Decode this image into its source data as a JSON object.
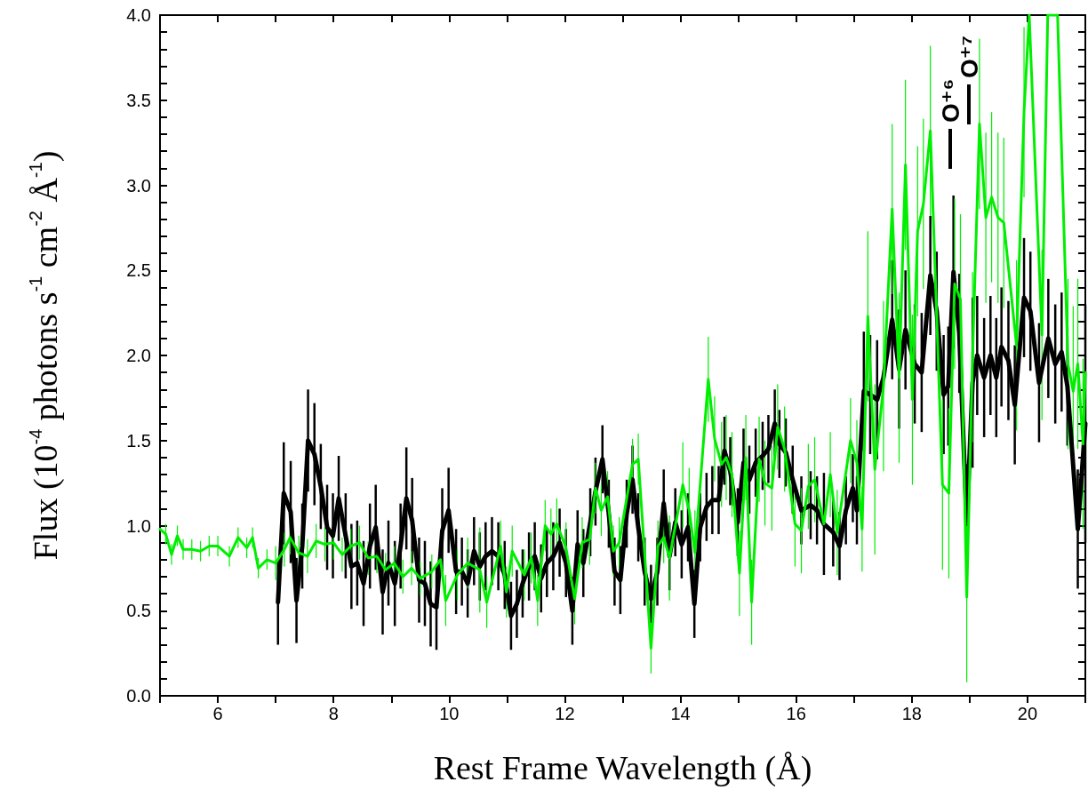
{
  "chart_data": {
    "type": "line",
    "xlabel": "Rest Frame Wavelength (Å)",
    "ylabel": "Flux (10$^{-4}$ photons s$^{-1}$ cm$^{-2}$ Å$^{-1}$)",
    "xlim": [
      5,
      21
    ],
    "xticks": [
      {
        "value": 5,
        "label": null
      },
      6,
      {
        "value": 7,
        "label": null
      },
      8,
      {
        "value": 9,
        "label": null
      },
      10,
      {
        "value": 11,
        "label": null
      },
      12,
      {
        "value": 13,
        "label": null
      },
      14,
      {
        "value": 15,
        "label": null
      },
      16,
      {
        "value": 17,
        "label": null
      },
      18,
      {
        "value": 19,
        "label": null
      },
      20,
      {
        "value": 21,
        "label": null
      }
    ],
    "ylim": [
      0,
      4
    ],
    "yticks": [
      {
        "value": 0,
        "label": "0.0"
      },
      {
        "value": 0.1,
        "label": null
      },
      {
        "value": 0.2,
        "label": null
      },
      {
        "value": 0.3,
        "label": null
      },
      {
        "value": 0.4,
        "label": null
      },
      {
        "value": 0.5,
        "label": "0.5"
      },
      {
        "value": 0.6,
        "label": null
      },
      {
        "value": 0.7,
        "label": null
      },
      {
        "value": 0.8,
        "label": null
      },
      {
        "value": 0.9,
        "label": null
      },
      {
        "value": 1,
        "label": "1.0"
      },
      {
        "value": 1.1,
        "label": null
      },
      {
        "value": 1.2,
        "label": null
      },
      {
        "value": 1.3,
        "label": null
      },
      {
        "value": 1.4,
        "label": null
      },
      {
        "value": 1.5,
        "label": "1.5"
      },
      {
        "value": 1.6,
        "label": null
      },
      {
        "value": 1.7,
        "label": null
      },
      {
        "value": 1.8,
        "label": null
      },
      {
        "value": 1.9,
        "label": null
      },
      {
        "value": 2,
        "label": "2.0"
      },
      {
        "value": 2.1,
        "label": null
      },
      {
        "value": 2.2,
        "label": null
      },
      {
        "value": 2.3,
        "label": null
      },
      {
        "value": 2.4,
        "label": null
      },
      {
        "value": 2.5,
        "label": "2.5"
      },
      {
        "value": 2.6,
        "label": null
      },
      {
        "value": 2.7,
        "label": null
      },
      {
        "value": 2.8,
        "label": null
      },
      {
        "value": 2.9,
        "label": null
      },
      {
        "value": 3,
        "label": "3.0"
      },
      {
        "value": 3.1,
        "label": null
      },
      {
        "value": 3.2,
        "label": null
      },
      {
        "value": 3.3,
        "label": null
      },
      {
        "value": 3.4,
        "label": null
      },
      {
        "value": 3.5,
        "label": "3.5"
      },
      {
        "value": 3.6,
        "label": null
      },
      {
        "value": 3.7,
        "label": null
      },
      {
        "value": 3.8,
        "label": null
      },
      {
        "value": 3.9,
        "label": null
      },
      {
        "value": 4,
        "label": "4.0"
      }
    ],
    "annotations": [
      "O⁺⁶",
      "O⁺⁷"
    ],
    "series": [
      {
        "color": "#000000",
        "x": [
          7.04,
          7.14,
          7.26,
          7.36,
          7.46,
          7.56,
          7.67,
          7.78,
          7.89,
          7.99,
          8.09,
          8.21,
          8.31,
          8.41,
          8.52,
          8.63,
          8.73,
          8.85,
          8.95,
          9.06,
          9.16,
          9.26,
          9.36,
          9.48,
          9.58,
          9.68,
          9.78,
          9.88,
          9.99,
          10.12,
          10.22,
          10.32,
          10.43,
          10.53,
          10.63,
          10.74,
          10.85,
          10.96,
          11.07,
          11.17,
          11.27,
          11.38,
          11.48,
          11.59,
          11.69,
          11.8,
          11.91,
          12.02,
          12.13,
          12.22,
          12.32,
          12.44,
          12.53,
          12.65,
          12.76,
          12.86,
          12.96,
          13.07,
          13.17,
          13.27,
          13.38,
          13.49,
          13.6,
          13.71,
          13.81,
          13.91,
          14.02,
          14.13,
          14.24,
          14.34,
          14.45,
          14.55,
          14.66,
          14.76,
          14.86,
          14.99,
          15.09,
          15.19,
          15.3,
          15.42,
          15.52,
          15.63,
          15.71,
          15.82,
          15.94,
          16.09,
          16.25,
          16.36,
          16.48,
          16.64,
          16.75,
          16.86,
          16.98,
          17.05,
          17.17,
          17.28,
          17.4,
          17.51,
          17.66,
          17.78,
          17.89,
          18.05,
          18.17,
          18.32,
          18.43,
          18.55,
          18.63,
          18.72,
          18.82,
          18.95,
          19.05,
          19.13,
          19.25,
          19.36,
          19.46,
          19.55,
          19.67,
          19.78,
          19.94,
          20.05,
          20.2,
          20.36,
          20.48,
          20.59,
          20.69,
          20.87,
          21.0
        ],
        "values": [
          0.55,
          1.19,
          1.08,
          0.56,
          0.88,
          1.5,
          1.42,
          1.23,
          0.99,
          0.94,
          1.16,
          0.94,
          0.76,
          0.78,
          0.66,
          0.88,
          0.99,
          0.61,
          0.78,
          0.66,
          0.88,
          1.16,
          1.03,
          0.68,
          0.66,
          0.54,
          0.52,
          0.97,
          1.09,
          0.73,
          0.73,
          0.66,
          0.85,
          0.76,
          0.82,
          0.85,
          0.82,
          0.71,
          0.47,
          0.54,
          0.66,
          0.76,
          0.82,
          0.69,
          0.78,
          0.82,
          0.9,
          0.78,
          0.5,
          0.89,
          0.78,
          1.02,
          1.2,
          1.39,
          1.07,
          0.73,
          0.68,
          1.07,
          1.27,
          0.99,
          0.73,
          0.57,
          0.73,
          1.13,
          0.82,
          1.02,
          0.89,
          0.99,
          0.54,
          0.99,
          1.11,
          1.15,
          1.15,
          1.44,
          1.32,
          1.02,
          1.37,
          1.27,
          1.37,
          1.41,
          1.45,
          1.6,
          1.48,
          1.43,
          1.27,
          1.09,
          1.12,
          1.09,
          1.01,
          0.96,
          0.88,
          1.09,
          1.22,
          1.09,
          1.79,
          1.77,
          1.74,
          1.87,
          2.21,
          1.92,
          2.15,
          1.95,
          1.9,
          2.47,
          2.26,
          1.77,
          1.82,
          2.49,
          2.13,
          1.01,
          1.84,
          2.0,
          1.87,
          2.0,
          1.87,
          2.05,
          1.97,
          1.71,
          2.34,
          2.26,
          1.84,
          2.1,
          1.95,
          2.02,
          1.82,
          0.98,
          1.6
        ],
        "errors": [
          0.25,
          0.3,
          0.3,
          0.25,
          0.25,
          0.3,
          0.3,
          0.25,
          0.25,
          0.25,
          0.25,
          0.25,
          0.25,
          0.25,
          0.25,
          0.25,
          0.25,
          0.25,
          0.25,
          0.25,
          0.25,
          0.3,
          0.25,
          0.25,
          0.25,
          0.25,
          0.25,
          0.25,
          0.25,
          0.25,
          0.2,
          0.2,
          0.2,
          0.2,
          0.2,
          0.2,
          0.2,
          0.2,
          0.2,
          0.2,
          0.2,
          0.2,
          0.2,
          0.2,
          0.2,
          0.2,
          0.2,
          0.2,
          0.2,
          0.2,
          0.2,
          0.2,
          0.2,
          0.2,
          0.2,
          0.2,
          0.2,
          0.2,
          0.2,
          0.2,
          0.2,
          0.2,
          0.2,
          0.2,
          0.2,
          0.2,
          0.2,
          0.2,
          0.2,
          0.2,
          0.2,
          0.2,
          0.2,
          0.2,
          0.2,
          0.2,
          0.2,
          0.2,
          0.2,
          0.2,
          0.2,
          0.2,
          0.2,
          0.2,
          0.2,
          0.2,
          0.2,
          0.2,
          0.3,
          0.2,
          0.2,
          0.2,
          0.2,
          0.2,
          0.35,
          0.35,
          0.35,
          null,
          0.35,
          0.35,
          0.35,
          0.35,
          0.35,
          0.35,
          0.35,
          0.35,
          0.35,
          0.45,
          0.35,
          0.35,
          0.5,
          0.35,
          0.35,
          0.35,
          0.35,
          0.35,
          0.35,
          0.35,
          0.35,
          0.35,
          0.35,
          0.35,
          0.35,
          0.35,
          0.35,
          0.35,
          0.7
        ]
      },
      {
        "color": "#00ee00",
        "x": [
          5.0,
          5.1,
          5.2,
          5.3,
          5.4,
          5.55,
          5.7,
          5.85,
          6.0,
          6.2,
          6.35,
          6.5,
          6.6,
          6.7,
          6.85,
          7.0,
          7.15,
          7.25,
          7.4,
          7.55,
          7.7,
          7.85,
          8.0,
          8.15,
          8.3,
          8.45,
          8.6,
          8.75,
          8.9,
          9.05,
          9.2,
          9.35,
          9.5,
          9.7,
          9.85,
          9.94,
          10.14,
          10.32,
          10.53,
          10.65,
          10.89,
          10.99,
          11.09,
          11.3,
          11.42,
          11.53,
          11.66,
          11.76,
          11.86,
          12.02,
          12.17,
          12.3,
          12.43,
          12.53,
          12.63,
          12.74,
          12.84,
          12.94,
          13.17,
          13.27,
          13.49,
          13.61,
          13.71,
          13.81,
          14.04,
          14.15,
          14.25,
          14.48,
          14.59,
          14.71,
          14.79,
          14.89,
          15.02,
          15.13,
          15.23,
          15.36,
          15.46,
          15.58,
          15.68,
          15.8,
          15.98,
          16.09,
          16.21,
          16.32,
          16.48,
          16.59,
          16.71,
          16.94,
          17.05,
          17.14,
          17.24,
          17.36,
          17.51,
          17.66,
          17.78,
          17.89,
          18.01,
          18.1,
          18.2,
          18.32,
          18.53,
          18.64,
          18.74,
          18.84,
          18.95,
          19.05,
          19.17,
          19.28,
          19.38,
          19.49,
          19.59,
          19.81,
          19.94,
          20.03,
          20.25,
          20.35,
          20.52,
          20.7,
          20.79,
          20.87,
          20.96,
          21.0
        ],
        "values": [
          0.98,
          0.95,
          0.83,
          0.94,
          0.86,
          0.86,
          0.85,
          0.88,
          0.88,
          0.82,
          0.93,
          0.87,
          0.93,
          0.75,
          0.8,
          0.78,
          0.86,
          0.93,
          0.84,
          0.82,
          0.91,
          0.89,
          0.9,
          0.83,
          0.88,
          0.9,
          0.81,
          0.82,
          0.74,
          0.78,
          0.7,
          0.75,
          0.69,
          0.73,
          0.8,
          0.56,
          0.71,
          0.78,
          0.74,
          0.55,
          0.88,
          0.61,
          0.85,
          0.71,
          0.81,
          0.56,
          1.0,
          0.95,
          1.01,
          0.87,
          0.57,
          0.9,
          0.92,
          1.22,
          1.09,
          1.17,
          0.85,
          0.9,
          1.36,
          1.39,
          0.28,
          0.88,
          0.93,
          0.81,
          1.24,
          1.09,
          0.84,
          1.86,
          1.51,
          1.36,
          1.4,
          1.3,
          0.72,
          1.4,
          0.55,
          1.39,
          1.25,
          1.22,
          1.58,
          1.45,
          1.01,
          0.97,
          1.23,
          1.27,
          1.01,
          1.3,
          0.96,
          1.5,
          1.37,
          0.98,
          2.23,
          1.33,
          1.82,
          2.86,
          1.87,
          3.12,
          1.74,
          2.73,
          2.89,
          3.32,
          1.24,
          1.19,
          2.42,
          2.33,
          0.58,
          1.99,
          3.36,
          2.81,
          2.93,
          2.81,
          2.78,
          2.06,
          3.43,
          4.0,
          2.12,
          4.0,
          4.0,
          1.95,
          1.79,
          1.95,
          1.48,
          1.9
        ],
        "errors": [
          null,
          0.06,
          0.06,
          0.06,
          0.06,
          0.06,
          0.06,
          0.06,
          0.06,
          0.06,
          0.06,
          0.06,
          0.06,
          0.06,
          0.06,
          0.1,
          0.1,
          0.1,
          0.1,
          0.1,
          0.1,
          0.1,
          0.1,
          0.1,
          0.1,
          0.1,
          0.1,
          0.1,
          0.1,
          0.1,
          0.1,
          0.1,
          0.1,
          0.1,
          0.1,
          0.15,
          0.15,
          0.15,
          0.25,
          0.15,
          0.15,
          0.15,
          0.15,
          0.15,
          0.15,
          0.15,
          0.15,
          0.15,
          0.15,
          0.15,
          0.15,
          0.15,
          0.15,
          0.15,
          0.15,
          0.15,
          0.15,
          0.15,
          0.15,
          0.15,
          0.15,
          0.15,
          0.15,
          0.25,
          0.25,
          0.25,
          0.25,
          0.25,
          0.25,
          0.25,
          0.25,
          0.25,
          0.25,
          0.25,
          0.25,
          0.25,
          0.25,
          0.25,
          0.25,
          0.25,
          0.25,
          0.25,
          0.25,
          0.25,
          null,
          0.25,
          0.25,
          0.25,
          0.25,
          0.25,
          0.5,
          0.5,
          0.5,
          0.5,
          0.5,
          0.5,
          0.5,
          0.5,
          0.5,
          0.5,
          0.5,
          0.5,
          0.5,
          0.5,
          0.5,
          0.5,
          0.5,
          0.5,
          0.5,
          0.5,
          0.5,
          0.5,
          0.5,
          null,
          0.5,
          null,
          null,
          0.5,
          0.5,
          0.5,
          0.5,
          null
        ]
      }
    ]
  }
}
